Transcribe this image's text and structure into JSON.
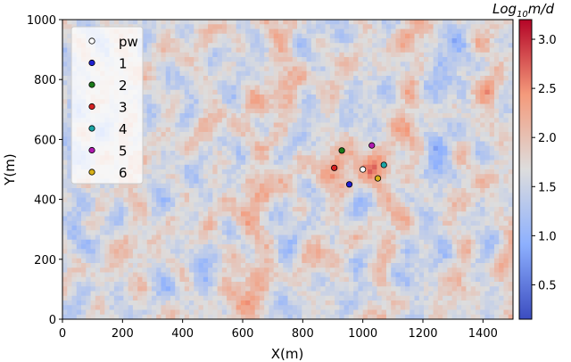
{
  "chart_data": {
    "type": "scatter",
    "background": "heatmap",
    "xlabel": "X(m)",
    "ylabel": "Y(m)",
    "xlim": [
      0,
      1500
    ],
    "ylim": [
      0,
      1000
    ],
    "x_ticks": [
      0,
      200,
      400,
      600,
      800,
      1000,
      1200,
      1400
    ],
    "y_ticks": [
      0,
      200,
      400,
      600,
      800,
      1000
    ],
    "grid": false,
    "colorbar": {
      "label_prefix": "Log",
      "label_subscript": "10",
      "label_suffix": "m/d",
      "range": [
        0.15,
        3.2
      ],
      "ticks": [
        "0.5",
        "1.0",
        "1.5",
        "2.0",
        "2.5",
        "3.0"
      ],
      "colormap": "coolwarm"
    },
    "legend_position": "top-left",
    "series": [
      {
        "name": "pw",
        "x": [
          1000
        ],
        "y": [
          500
        ],
        "color": "#ffffff"
      },
      {
        "name": "1",
        "x": [
          955
        ],
        "y": [
          450
        ],
        "color": "#1f1fd1"
      },
      {
        "name": "2",
        "x": [
          930
        ],
        "y": [
          563
        ],
        "color": "#1a7a1a"
      },
      {
        "name": "3",
        "x": [
          905
        ],
        "y": [
          505
        ],
        "color": "#d62020"
      },
      {
        "name": "4",
        "x": [
          1070
        ],
        "y": [
          515
        ],
        "color": "#1aa6a6"
      },
      {
        "name": "5",
        "x": [
          1030
        ],
        "y": [
          580
        ],
        "color": "#b01ab0"
      },
      {
        "name": "6",
        "x": [
          1050
        ],
        "y": [
          470
        ],
        "color": "#d8b21a"
      }
    ]
  }
}
